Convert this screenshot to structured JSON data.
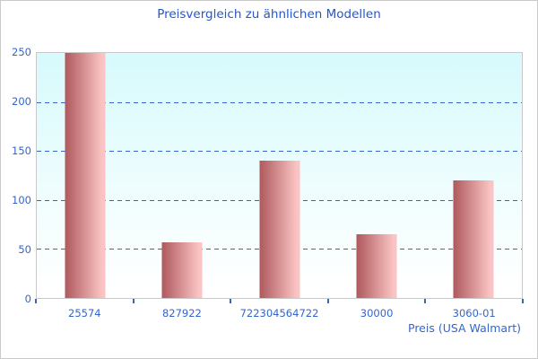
{
  "chart_data": {
    "type": "bar",
    "title": "Preisvergleich zu ähnlichen Modellen",
    "categories": [
      "25574",
      "827922",
      "722304564722",
      "30000",
      "3060-01"
    ],
    "values": [
      250,
      57,
      140,
      65,
      120
    ],
    "xlabel": "Preis (USA Walmart)",
    "ylabel": "",
    "ylim": [
      0,
      250
    ],
    "yticks": [
      0,
      50,
      100,
      150,
      200,
      250
    ],
    "grid": "horizontal-dashed",
    "legend": false,
    "colors": {
      "title_text": "#2257d0",
      "axis_text": "#3366cc",
      "gridline": "#3366cc",
      "tick_mark": "#3366cc",
      "bar_gradient_left": "#ae595d",
      "bar_gradient_right": "#fbc4c4",
      "plot_bg_top": "#d7fafc",
      "plot_bg_bottom": "#ffffff",
      "border": "#c9c9c9"
    }
  }
}
